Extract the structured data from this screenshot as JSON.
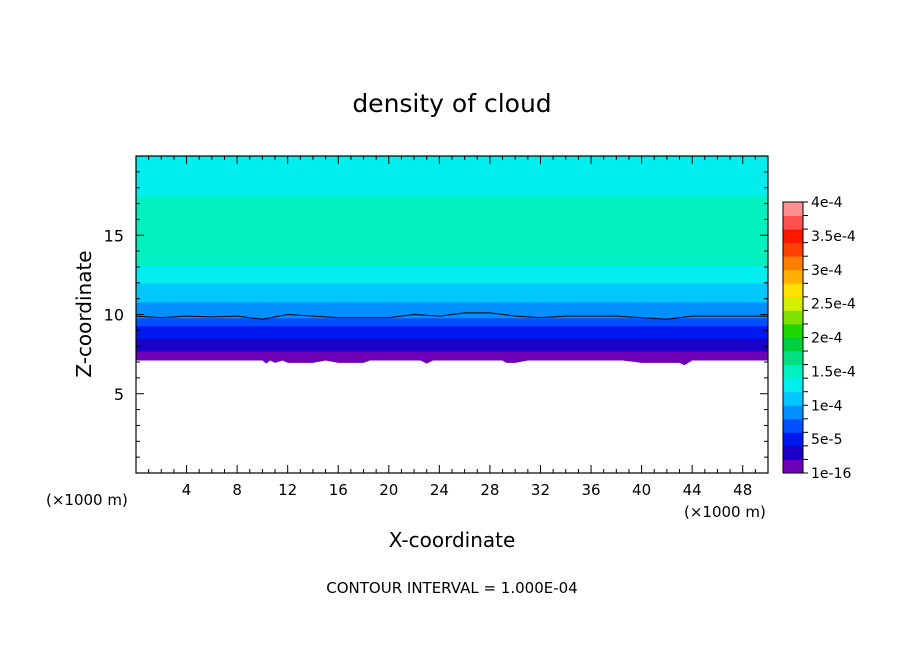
{
  "chart_data": {
    "type": "heatmap",
    "title": "density of cloud",
    "xlabel": "X-coordinate",
    "ylabel": "Z-coordinate",
    "x_unit": "(×1000 m)",
    "z_unit": "(×1000 m)",
    "xlim": [
      0,
      50
    ],
    "ylim": [
      0,
      20
    ],
    "x_ticks": [
      4,
      8,
      12,
      16,
      20,
      24,
      28,
      32,
      36,
      40,
      44,
      48
    ],
    "y_ticks": [
      5,
      10,
      15
    ],
    "footer": "CONTOUR INTERVAL = 1.000E-04",
    "colorbar": {
      "labels": [
        "1e-16",
        "5e-5",
        "1e-4",
        "1.5e-4",
        "2e-4",
        "2.5e-4",
        "3e-4",
        "3.5e-4",
        "4e-4"
      ],
      "label_values": [
        0,
        5e-05,
        0.0001,
        0.00015,
        0.0002,
        0.00025,
        0.0003,
        0.00035,
        0.0004
      ],
      "colors": [
        "#6e00b8",
        "#1a00c8",
        "#0018f0",
        "#0050ff",
        "#0090ff",
        "#00c8ff",
        "#00eeee",
        "#00f0c0",
        "#00e080",
        "#00d040",
        "#20d800",
        "#80e000",
        "#d0f000",
        "#ffe000",
        "#ffb000",
        "#ff8000",
        "#ff4000",
        "#ff1800",
        "#ff5050",
        "#ff9090"
      ]
    },
    "profile": {
      "z": [
        6.9,
        7.2,
        7.5,
        7.8,
        8.1,
        8.5,
        8.9,
        9.3,
        9.8,
        10.3,
        10.8,
        11.4,
        12.3,
        13.4,
        16.8,
        18.2,
        20.0
      ],
      "density": [
        2.5e-06,
        8e-06,
        1.5e-05,
        2.2e-05,
        3e-05,
        4e-05,
        5e-05,
        6e-05,
        8e-05,
        8.8e-05,
        0.0001,
        0.000112,
        0.000125,
        0.000145,
        0.000145,
        0.000135,
        0.000125
      ]
    },
    "contour_line": {
      "value": 0.0001,
      "x": [
        0,
        2,
        4,
        6,
        8,
        10,
        12,
        14,
        16,
        18,
        20,
        22,
        24,
        26,
        28,
        30,
        32,
        34,
        36,
        38,
        40,
        42,
        44,
        46,
        48,
        50
      ],
      "z": [
        9.9,
        9.8,
        9.9,
        9.85,
        9.9,
        9.7,
        10.0,
        9.9,
        9.8,
        9.8,
        9.8,
        10.0,
        9.9,
        10.1,
        10.1,
        9.9,
        9.8,
        9.9,
        9.9,
        9.9,
        9.8,
        9.7,
        9.9,
        9.9,
        9.9,
        9.9
      ]
    },
    "cloud_base": {
      "x": [
        0,
        10,
        10.3,
        10.6,
        11,
        11.6,
        12,
        14,
        15,
        16,
        18,
        18.5,
        22.5,
        23,
        23.5,
        24,
        29,
        29.3,
        30,
        31,
        38.5,
        40,
        43,
        43.4,
        44,
        50
      ],
      "z": [
        7.1,
        7.1,
        6.9,
        7.1,
        6.95,
        7.1,
        6.95,
        6.95,
        7.1,
        6.95,
        6.95,
        7.1,
        7.1,
        6.9,
        7.1,
        7.1,
        7.1,
        6.95,
        6.95,
        7.1,
        7.1,
        6.95,
        6.95,
        6.8,
        7.1,
        7.1
      ]
    }
  }
}
